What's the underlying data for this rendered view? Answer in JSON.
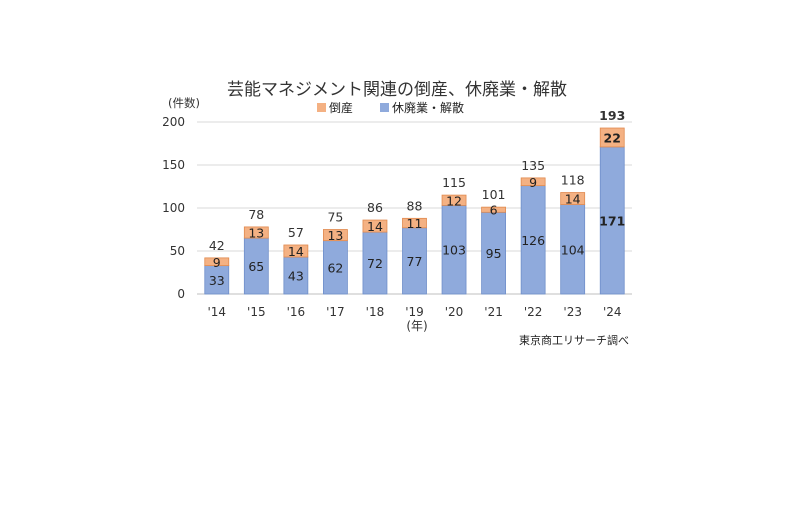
{
  "chart_data": {
    "type": "bar",
    "stacked": true,
    "title": "芸能マネジメント関連の倒産、休廃業・解散",
    "ylabel": "(件数)",
    "xlabel": "(年)",
    "ylim": [
      0,
      200
    ],
    "yticks": [
      0,
      50,
      100,
      150,
      200
    ],
    "grid": true,
    "legend_position": "top",
    "categories": [
      "'14",
      "'15",
      "'16",
      "'17",
      "'18",
      "'19",
      "'20",
      "'21",
      "'22",
      "'23",
      "'24"
    ],
    "series": [
      {
        "name": "休廃業・解散",
        "color": "#8faadc",
        "values": [
          33,
          65,
          43,
          62,
          72,
          77,
          103,
          95,
          126,
          104,
          171
        ]
      },
      {
        "name": "倒産",
        "color": "#f4b183",
        "values": [
          9,
          13,
          14,
          13,
          14,
          11,
          12,
          6,
          9,
          14,
          22
        ]
      }
    ],
    "totals": [
      42,
      78,
      57,
      75,
      86,
      88,
      115,
      101,
      135,
      118,
      193
    ],
    "highlight_last": true,
    "source": "東京商工リサーチ調べ"
  }
}
